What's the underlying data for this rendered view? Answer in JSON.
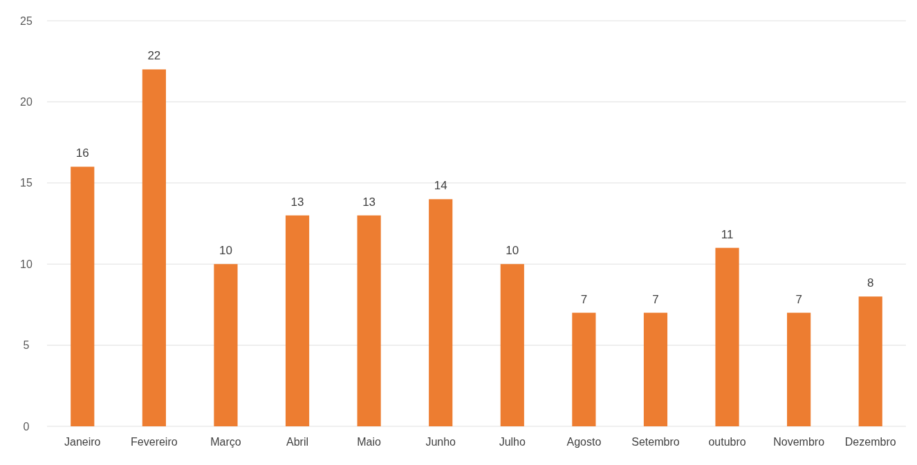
{
  "chart_data": {
    "type": "bar",
    "categories": [
      "Janeiro",
      "Fevereiro",
      "Março",
      "Abril",
      "Maio",
      "Junho",
      "Julho",
      "Agosto",
      "Setembro",
      "outubro",
      "Novembro",
      "Dezembro"
    ],
    "values": [
      16,
      22,
      10,
      13,
      13,
      14,
      10,
      7,
      7,
      11,
      7,
      8
    ],
    "color": "#ed7d31",
    "ylim": [
      0,
      25
    ],
    "yticks": [
      0,
      5,
      10,
      15,
      20,
      25
    ],
    "grid": "y",
    "data_labels": true
  }
}
